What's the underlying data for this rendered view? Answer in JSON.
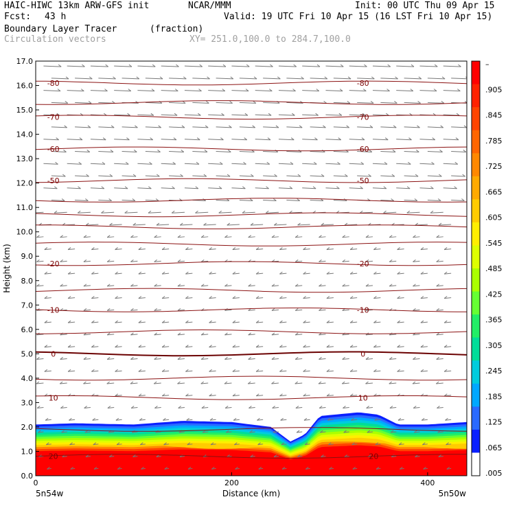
{
  "header": {
    "line1_left": "HAIC-HIWC 13km ARW-GFS init",
    "line1_mid": "NCAR/MMM",
    "line1_right": "Init: 00 UTC Thu 09 Apr 15",
    "line2_left": "Fcst:",
    "line2_hours": "43 h",
    "line2_right": "Valid: 19 UTC Fri 10 Apr 15 (16 LST Fri 10 Apr 15)",
    "field_name": "Boundary Layer Tracer",
    "field_units": "(fraction)",
    "vector_name": "Circulation vectors",
    "xy_range": "XY= 251.0,100.0 to 284.7,100.0"
  },
  "chart_data": {
    "type": "heatmap",
    "xlabel": "Distance (km)",
    "ylabel": "Height (km)",
    "xlim": [
      0,
      440
    ],
    "ylim": [
      0,
      17
    ],
    "x_ticks": [
      "0",
      "200",
      "400"
    ],
    "x_tick_values": [
      0,
      200,
      400
    ],
    "x_end_labels": {
      "left": "5n54w",
      "right": "5n50w"
    },
    "y_ticks": [
      "0.0",
      "1.0",
      "2.0",
      "3.0",
      "4.0",
      "5.0",
      "6.0",
      "7.0",
      "8.0",
      "9.0",
      "10.0",
      "11.0",
      "12.0",
      "13.0",
      "14.0",
      "15.0",
      "16.0",
      "17.0"
    ],
    "colorbar": {
      "labels": [
        "–",
        ".905",
        ".845",
        ".785",
        ".725",
        ".665",
        ".605",
        ".545",
        ".485",
        ".425",
        ".365",
        ".305",
        ".245",
        ".185",
        ".125",
        ".065",
        ".005"
      ],
      "colors": [
        "#ff0000",
        "#ff2200",
        "#ff4400",
        "#ff6600",
        "#ff8800",
        "#ffaa00",
        "#ffcc00",
        "#ffee00",
        "#ddff00",
        "#aaff00",
        "#66ff33",
        "#22ee66",
        "#00dd99",
        "#00ccdd",
        "#00a8ff",
        "#2a6aff",
        "#0a1fff",
        "#ffffff"
      ]
    },
    "tracer_top_km": [
      [
        0,
        2.1
      ],
      [
        40,
        2.15
      ],
      [
        100,
        2.1
      ],
      [
        150,
        2.25
      ],
      [
        200,
        2.2
      ],
      [
        240,
        2.0
      ],
      [
        260,
        1.4
      ],
      [
        275,
        1.7
      ],
      [
        290,
        2.45
      ],
      [
        330,
        2.6
      ],
      [
        350,
        2.5
      ],
      [
        370,
        2.1
      ],
      [
        400,
        2.1
      ],
      [
        440,
        2.2
      ]
    ],
    "temperature_contours": [
      {
        "label": "20",
        "height_km": 0.8,
        "label_x": 345
      },
      {
        "label": "10",
        "height_km": 3.2,
        "label_x": 334
      },
      {
        "label": "0",
        "height_km": 5.0,
        "label_x": 334
      },
      {
        "label": "-10",
        "height_km": 6.8,
        "label_x": 334
      },
      {
        "label": "-20",
        "height_km": 8.7,
        "label_x": 334
      },
      {
        "label": "-50",
        "height_km": 12.1,
        "label_x": 334
      },
      {
        "label": "-60",
        "height_km": 13.4,
        "label_x": 334
      },
      {
        "label": "-70",
        "height_km": 14.7,
        "label_x": 334
      },
      {
        "label": "-80",
        "height_km": 16.1,
        "label_x": 334
      }
    ],
    "other_contour_heights_km": [
      1.9,
      4.0,
      5.9,
      7.6,
      9.5,
      10.2,
      10.7,
      11.3,
      15.3
    ]
  }
}
